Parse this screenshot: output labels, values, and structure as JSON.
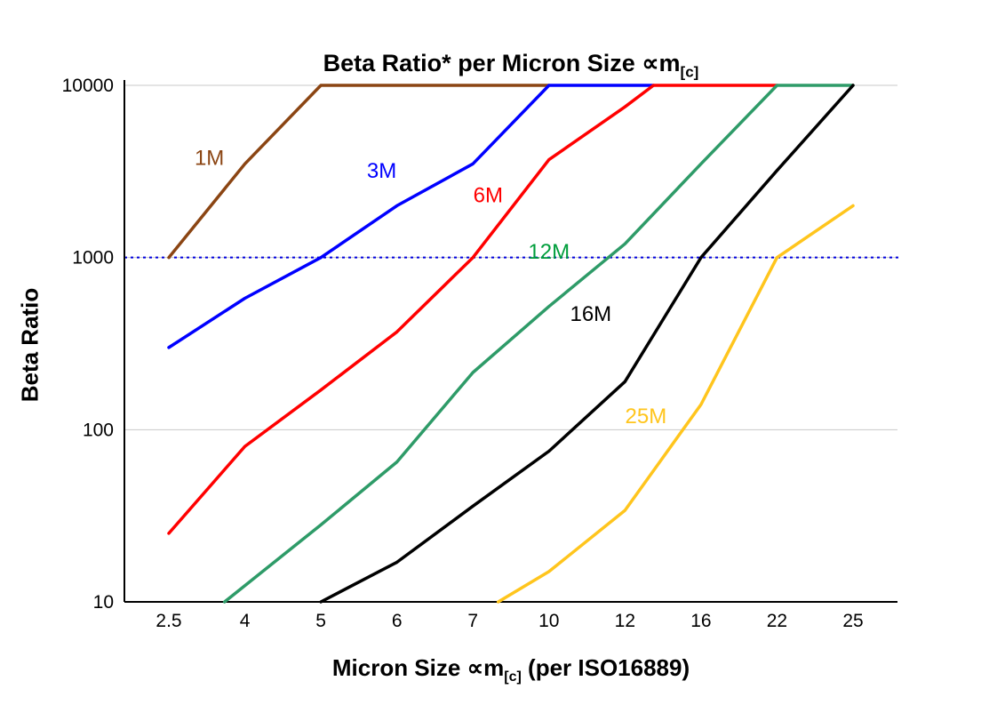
{
  "chart_data": {
    "type": "line",
    "title": {
      "main": "Beta Ratio* per Micron Size ∝m",
      "sub": "[c]"
    },
    "xlabel": {
      "pre": "Micron Size ∝m",
      "sub": "[c]",
      "post": " (per ISO16889)"
    },
    "ylabel": "Beta Ratio",
    "x_categories": [
      2.5,
      4,
      5,
      6,
      7,
      10,
      12,
      16,
      22,
      25
    ],
    "y_ticks": [
      10,
      100,
      1000,
      10000
    ],
    "y_scale": "log",
    "ylim": [
      10,
      10000
    ],
    "grid": {
      "horizontal": true,
      "vertical": false,
      "color": "#c9c9c9"
    },
    "reference_line": {
      "value": 1000,
      "color": "#0000dd",
      "style": "dotted"
    },
    "series": [
      {
        "name": "1M",
        "color": "#8B4513",
        "points": [
          [
            2.5,
            1000
          ],
          [
            4,
            3500
          ],
          [
            5,
            10000
          ],
          [
            10,
            10000
          ]
        ],
        "label": {
          "text": "1M",
          "x": 3.3,
          "y": 3800
        }
      },
      {
        "name": "3M",
        "color": "#0000FF",
        "points": [
          [
            2.5,
            300
          ],
          [
            4,
            580
          ],
          [
            5,
            1000
          ],
          [
            6,
            2000
          ],
          [
            7,
            3500
          ],
          [
            10,
            10000
          ],
          [
            13.5,
            10000
          ]
        ],
        "label": {
          "text": "3M",
          "x": 5.8,
          "y": 3200
        }
      },
      {
        "name": "6M",
        "color": "#FF0000",
        "points": [
          [
            2.5,
            25
          ],
          [
            4,
            80
          ],
          [
            5,
            170
          ],
          [
            6,
            370
          ],
          [
            7,
            1000
          ],
          [
            10,
            3700
          ],
          [
            12,
            7500
          ],
          [
            13.5,
            10000
          ],
          [
            22,
            10000
          ]
        ],
        "label": {
          "text": "6M",
          "x": 7.6,
          "y": 2300
        }
      },
      {
        "name": "12M",
        "color": "#2E9B68",
        "label_color": "#009E3C",
        "points": [
          [
            3.6,
            10
          ],
          [
            5,
            28
          ],
          [
            6,
            65
          ],
          [
            7,
            215
          ],
          [
            10,
            520
          ],
          [
            12,
            1200
          ],
          [
            16,
            3500
          ],
          [
            22,
            10000
          ],
          [
            25,
            10000
          ]
        ],
        "label": {
          "text": "12M",
          "x": 10,
          "y": 1080
        }
      },
      {
        "name": "16M",
        "color": "#000000",
        "points": [
          [
            5,
            10
          ],
          [
            6,
            17
          ],
          [
            7,
            36
          ],
          [
            10,
            75
          ],
          [
            12,
            190
          ],
          [
            16,
            1000
          ],
          [
            22,
            3200
          ],
          [
            25,
            10000
          ]
        ],
        "label": {
          "text": "16M",
          "x": 11.1,
          "y": 470
        }
      },
      {
        "name": "25M",
        "color": "#FFC51D",
        "points": [
          [
            8,
            10
          ],
          [
            10,
            15
          ],
          [
            12,
            34
          ],
          [
            16,
            140
          ],
          [
            22,
            1000
          ],
          [
            25,
            2000
          ]
        ],
        "label": {
          "text": "25M",
          "x": 13.1,
          "y": 120
        }
      }
    ]
  }
}
